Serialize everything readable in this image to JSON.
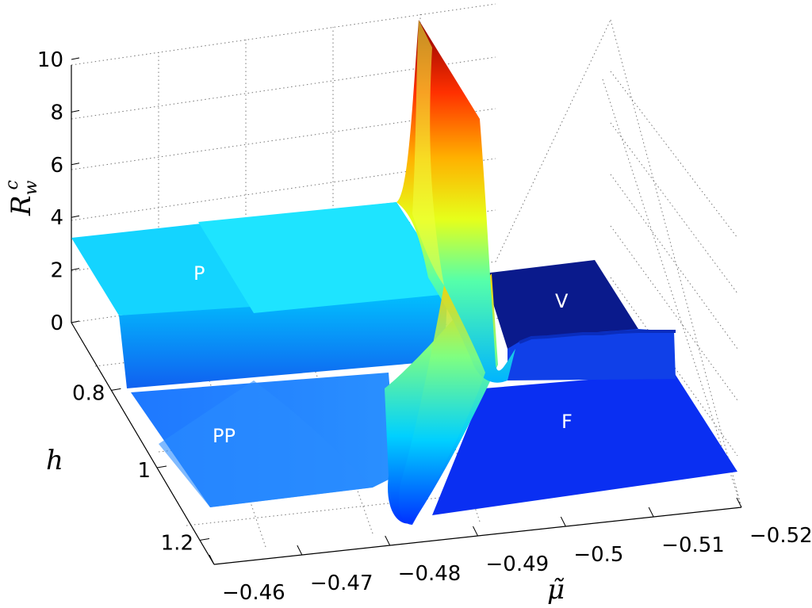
{
  "chart_data": {
    "type": "surface3d",
    "title": "",
    "xlabel": "μ̃",
    "ylabel": "h",
    "zlabel": "R",
    "zlabel_sub": "w",
    "zlabel_sup": "c",
    "x_ticks": [
      "−0.46",
      "−0.47",
      "−0.48",
      "−0.49",
      "−0.5",
      "−0.51",
      "−0.52"
    ],
    "y_ticks": [
      "0.8",
      "1",
      "1.2"
    ],
    "z_ticks": [
      "0",
      "2",
      "4",
      "6",
      "8",
      "10"
    ],
    "xlim": [
      -0.46,
      -0.52
    ],
    "ylim": [
      0.7,
      1.25
    ],
    "zlim": [
      0,
      10
    ],
    "grid": true,
    "colormap": "jet",
    "regions": [
      {
        "label": "P",
        "value": 3.3
      },
      {
        "label": "PP",
        "value": 2.0
      },
      {
        "label": "V",
        "value": 0.0
      },
      {
        "label": "F",
        "value": 1.0
      }
    ],
    "peak_value": 10.5
  }
}
